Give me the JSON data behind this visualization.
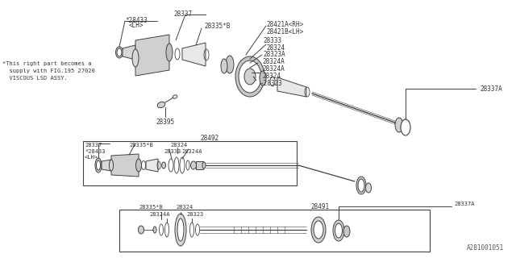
{
  "bg": "#f5f5f0",
  "lc": "#404040",
  "tc": "#333333",
  "footer": "A281001051",
  "note1": "*This right part becomes a",
  "note2": "  supply with FIG.195 27020",
  "note3": "  VISCOUS LSD ASSY.",
  "top": {
    "28433_lh_line1": "*28433",
    "28433_lh_line2": "<LH>",
    "28337": "28337",
    "28335B": "28335*B",
    "28421A": "28421A<RH>",
    "28421B": "28421B<LH>",
    "28333": "28333",
    "28324a": "28324",
    "28323A": "28323A",
    "28324A1": "28324A",
    "28324A2": "28324A",
    "28324b": "28324",
    "28323b": "-28323",
    "28337A": "28337A",
    "28395": "28395"
  },
  "mid": {
    "box_label": "28492",
    "28337": "28337",
    "28335B": "28335*B",
    "28324": "28324",
    "28433": "*28433",
    "lh": "<LH>",
    "28333": "28333",
    "28324A": "28324A"
  },
  "bot": {
    "box_label": "28491",
    "28335B": "28335*B",
    "28324": "28324",
    "28324A": "28324A",
    "28323": "28323",
    "28337A": "28337A"
  }
}
